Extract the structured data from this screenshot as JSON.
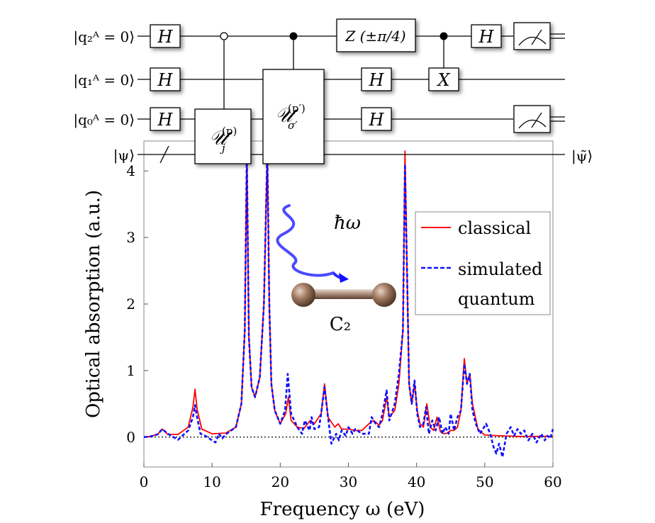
{
  "circuit": {
    "wire_labels": [
      "|q₂ᴬ = 0⟩",
      "|q₁ᴬ = 0⟩",
      "|q₀ᴬ = 0⟩",
      "|ψ⟩"
    ],
    "output_label": "|ψ̃⟩",
    "gates": {
      "h": "H",
      "x": "X",
      "z": "Z (±π/4)",
      "u1_main": "𝒰",
      "u1_sub": "j",
      "u1_sup": "(p)",
      "u2_main": "𝒰",
      "u2_sub": "σ′",
      "u2_sup": "(p′)"
    }
  },
  "molecule": {
    "photon_label": "ħω",
    "name": "C₂"
  },
  "chart_data": {
    "type": "line",
    "title": "",
    "xlabel": "Frequency ω (eV)",
    "ylabel": "Optical absorption (a.u.)",
    "xlim": [
      0,
      60
    ],
    "ylim": [
      -0.45,
      4.45
    ],
    "xticks": [
      0,
      10,
      20,
      30,
      40,
      50,
      60
    ],
    "yticks": [
      0,
      1,
      2,
      3,
      4
    ],
    "legend_position": "top-right",
    "baseline": {
      "y": 0,
      "style": "dotted"
    },
    "series": [
      {
        "name": "classical",
        "color": "#ff0000",
        "style": "solid",
        "x": [
          0,
          1,
          2,
          2.7,
          3.5,
          5,
          6.5,
          7.2,
          7.5,
          7.8,
          8.5,
          10,
          12,
          13.5,
          14.3,
          14.8,
          15.1,
          15.4,
          15.8,
          16.3,
          17,
          17.6,
          18.1,
          18.4,
          18.7,
          19.2,
          20,
          20.8,
          21.2,
          21.6,
          22.5,
          23.5,
          24,
          24.4,
          25,
          26,
          26.5,
          27,
          28,
          28.5,
          29,
          30,
          31,
          32,
          33,
          33.7,
          34.5,
          35,
          35.6,
          36,
          36.8,
          37.4,
          38,
          38.3,
          38.6,
          38.9,
          39.3,
          39.7,
          40.1,
          40.5,
          41,
          41.5,
          42,
          42.5,
          43,
          43.5,
          44,
          44.5,
          45,
          45.5,
          46,
          46.5,
          47,
          47.4,
          47.8,
          48.2,
          49,
          50,
          52,
          55,
          58,
          60
        ],
        "y": [
          0,
          0.01,
          0.04,
          0.12,
          0.04,
          0.04,
          0.15,
          0.45,
          0.72,
          0.42,
          0.12,
          0.05,
          0.06,
          0.15,
          0.5,
          1.6,
          4.3,
          1.5,
          0.75,
          0.6,
          0.9,
          2.0,
          4.3,
          2.0,
          0.8,
          0.4,
          0.2,
          0.35,
          0.6,
          0.25,
          0.15,
          0.13,
          0.2,
          0.25,
          0.2,
          0.35,
          0.8,
          0.3,
          0.15,
          0.2,
          0.12,
          0.12,
          0.1,
          0.1,
          0.2,
          0.25,
          0.18,
          0.25,
          0.6,
          0.3,
          0.4,
          0.8,
          1.6,
          4.3,
          2.5,
          0.8,
          0.5,
          0.8,
          0.4,
          0.2,
          0.15,
          0.5,
          0.15,
          0.1,
          0.3,
          0.08,
          0.05,
          0.06,
          0.1,
          0.1,
          0.15,
          0.4,
          1.18,
          0.8,
          0.95,
          0.5,
          0.12,
          0.03,
          0.02,
          0.01,
          0.01,
          0.01
        ]
      },
      {
        "name": "simulated quantum",
        "color": "#1010ff",
        "style": "dashed",
        "x": [
          0,
          1,
          2,
          2.7,
          3.5,
          5,
          6.5,
          7.2,
          7.5,
          7.8,
          8.3,
          9,
          10,
          10.5,
          11,
          11.5,
          12,
          13.5,
          14.3,
          14.8,
          15.1,
          15.4,
          15.8,
          16.3,
          17,
          17.6,
          18.1,
          18.4,
          18.7,
          19.2,
          20,
          20.7,
          21.1,
          21.6,
          22.5,
          23.2,
          23.6,
          24.3,
          24.6,
          25,
          25.7,
          26,
          26.5,
          27,
          27.5,
          28.2,
          28.6,
          29,
          29.6,
          30,
          30.6,
          31,
          32,
          33,
          33.4,
          34,
          34.5,
          35,
          35.6,
          36,
          36.8,
          37.4,
          38,
          38.3,
          38.6,
          38.9,
          39.3,
          39.7,
          40.1,
          40.5,
          41,
          41.4,
          41.8,
          42.3,
          42.8,
          43.3,
          43.8,
          44.2,
          44.7,
          45,
          45.5,
          46,
          46.5,
          47,
          47.4,
          47.8,
          48.2,
          48.7,
          49.3,
          50.2,
          50.8,
          51.3,
          51.7,
          52.1,
          52.6,
          53.2,
          53.8,
          54.3,
          54.8,
          55.3,
          55.8,
          56.4,
          57,
          57.6,
          58.3,
          58.8,
          59.2,
          59.6,
          60
        ],
        "y": [
          0,
          0.01,
          0.04,
          0.12,
          0.05,
          -0.04,
          0.1,
          0.3,
          0.48,
          0.3,
          0.05,
          0.02,
          -0.05,
          -0.08,
          0.05,
          -0.02,
          0.04,
          0.15,
          0.5,
          1.6,
          4.3,
          1.5,
          0.75,
          0.6,
          0.9,
          2.0,
          4.3,
          2.0,
          0.8,
          0.4,
          0.2,
          0.4,
          0.95,
          0.35,
          0.15,
          0.05,
          0.25,
          0.1,
          0.3,
          0.12,
          0.15,
          0.35,
          0.75,
          0.3,
          -0.1,
          0.05,
          -0.05,
          0.1,
          0.02,
          0.15,
          0.05,
          0.12,
          0.05,
          0.05,
          0.3,
          0.2,
          0.15,
          0.35,
          0.7,
          0.25,
          0.5,
          0.95,
          1.6,
          4.1,
          2.5,
          0.8,
          0.5,
          0.85,
          0.35,
          0.15,
          0.2,
          0.45,
          0.05,
          0.25,
          0.1,
          0.3,
          0.05,
          0.15,
          0.05,
          0.35,
          0.1,
          0.3,
          0.4,
          1.1,
          0.8,
          0.95,
          0.4,
          0.2,
          0.05,
          0.2,
          0.05,
          -0.15,
          -0.25,
          -0.1,
          -0.3,
          0.05,
          0.15,
          0.02,
          0.12,
          0.05,
          0.1,
          -0.05,
          0.05,
          -0.08,
          0.05,
          -0.05,
          0.02,
          -0.02,
          0.12
        ]
      }
    ]
  }
}
